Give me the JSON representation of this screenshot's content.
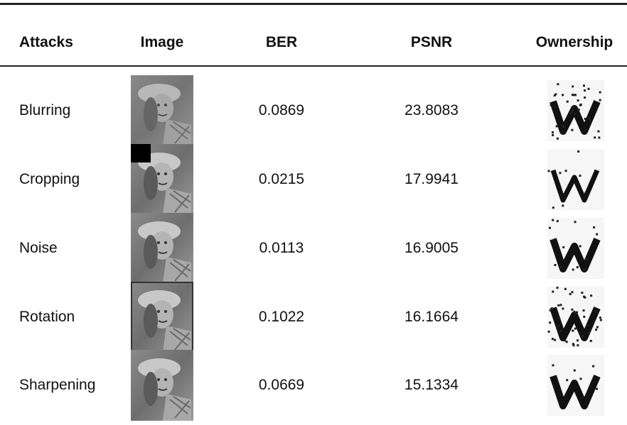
{
  "table": {
    "header": [
      "Attacks",
      "Image",
      "BER",
      "PSNR",
      "Ownership"
    ],
    "rows": [
      [
        "Blurring",
        "0.0869",
        "23.8083"
      ],
      [
        "Cropping",
        "0.0215",
        "17.9941"
      ],
      [
        "Noise",
        "0.0113",
        "16.9005"
      ],
      [
        "Rotation",
        "0.1022",
        "16.1664"
      ],
      [
        "Sharpening",
        "0.0669",
        "15.1334"
      ]
    ]
  }
}
